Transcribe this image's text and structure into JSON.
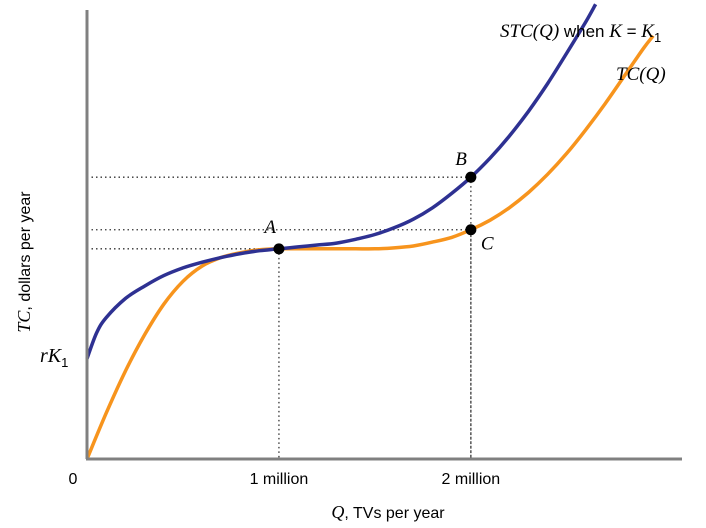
{
  "chart_data": {
    "type": "line",
    "xlabel": {
      "symbol": "Q",
      "text": ", TVs per year"
    },
    "ylabel": {
      "symbol": "TC",
      "text": ", dollars per year"
    },
    "x_ticks": [
      {
        "value": 0,
        "label": "0"
      },
      {
        "value": 1,
        "label": "1 million"
      },
      {
        "value": 2,
        "label": "2 million"
      }
    ],
    "y_intercept_label": {
      "main": "rK",
      "sub": "1"
    },
    "xlim": [
      0,
      3.1
    ],
    "ylim": [
      0,
      4.7
    ],
    "colors": {
      "stc": "#2e3192",
      "tc": "#f7941d",
      "axis": "#808080",
      "guide": "#333333",
      "point": "#000000"
    },
    "series": [
      {
        "id": "stc",
        "name_parts": {
          "f": "STC",
          "arg": "Q",
          "when": " when ",
          "k": "K",
          "eq": " = ",
          "k1": "K",
          "sub": "1"
        },
        "color": "#2e3192",
        "points": [
          [
            0,
            1.05
          ],
          [
            0.05,
            1.32
          ],
          [
            0.1,
            1.48
          ],
          [
            0.2,
            1.68
          ],
          [
            0.3,
            1.81
          ],
          [
            0.4,
            1.92
          ],
          [
            0.5,
            2.0
          ],
          [
            0.6,
            2.06
          ],
          [
            0.7,
            2.11
          ],
          [
            0.8,
            2.15
          ],
          [
            0.9,
            2.18
          ],
          [
            1.0,
            2.2
          ],
          [
            1.1,
            2.22
          ],
          [
            1.2,
            2.24
          ],
          [
            1.3,
            2.26
          ],
          [
            1.4,
            2.3
          ],
          [
            1.5,
            2.35
          ],
          [
            1.6,
            2.42
          ],
          [
            1.7,
            2.51
          ],
          [
            1.8,
            2.63
          ],
          [
            1.9,
            2.78
          ],
          [
            2.0,
            2.95
          ],
          [
            2.1,
            3.15
          ],
          [
            2.2,
            3.38
          ],
          [
            2.3,
            3.64
          ],
          [
            2.4,
            3.93
          ],
          [
            2.5,
            4.25
          ],
          [
            2.6,
            4.58
          ],
          [
            2.65,
            4.76
          ]
        ]
      },
      {
        "id": "tc",
        "name_parts": {
          "f": "TC",
          "arg": "Q"
        },
        "color": "#f7941d",
        "points": [
          [
            0,
            0
          ],
          [
            0.1,
            0.48
          ],
          [
            0.2,
            0.92
          ],
          [
            0.3,
            1.3
          ],
          [
            0.4,
            1.62
          ],
          [
            0.5,
            1.86
          ],
          [
            0.6,
            2.02
          ],
          [
            0.7,
            2.11
          ],
          [
            0.8,
            2.16
          ],
          [
            0.9,
            2.19
          ],
          [
            1.0,
            2.2
          ],
          [
            1.1,
            2.2
          ],
          [
            1.2,
            2.2
          ],
          [
            1.3,
            2.2
          ],
          [
            1.4,
            2.2
          ],
          [
            1.5,
            2.2
          ],
          [
            1.6,
            2.21
          ],
          [
            1.7,
            2.23
          ],
          [
            1.8,
            2.27
          ],
          [
            1.9,
            2.32
          ],
          [
            2.0,
            2.4
          ],
          [
            2.1,
            2.5
          ],
          [
            2.2,
            2.63
          ],
          [
            2.3,
            2.79
          ],
          [
            2.4,
            2.98
          ],
          [
            2.5,
            3.2
          ],
          [
            2.6,
            3.45
          ],
          [
            2.7,
            3.72
          ],
          [
            2.8,
            4.01
          ],
          [
            2.9,
            4.3
          ],
          [
            2.95,
            4.43
          ]
        ]
      }
    ],
    "points": [
      {
        "id": "A",
        "label": "A",
        "x": 1.0,
        "y": 2.2
      },
      {
        "id": "B",
        "label": "B",
        "x": 2.0,
        "y": 2.95
      },
      {
        "id": "C",
        "label": "C",
        "x": 2.0,
        "y": 2.4
      }
    ],
    "grid": false,
    "legend": "curve labels at upper-right end of each curve"
  }
}
